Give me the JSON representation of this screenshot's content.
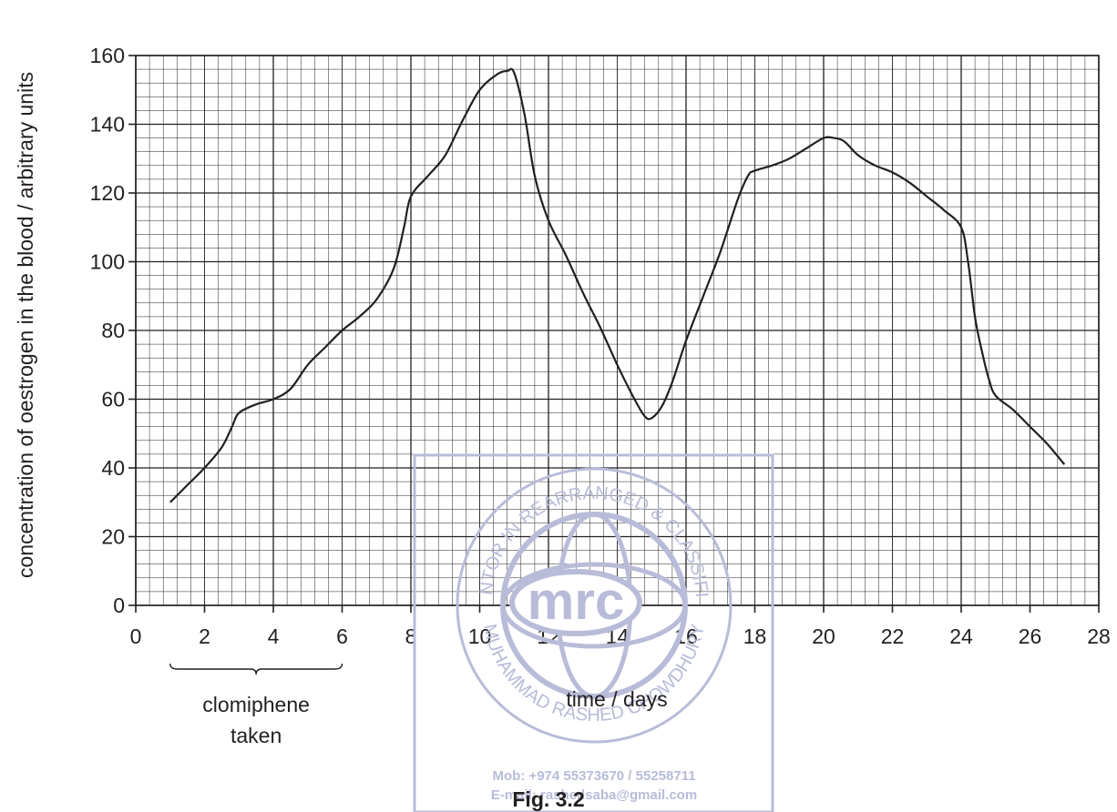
{
  "chart_data": {
    "type": "line",
    "title": "",
    "caption": "Fig. 3.2",
    "xlabel": "time / days",
    "ylabel": "concentration of oestrogen in the blood / arbitrary units",
    "xlim": [
      0,
      28
    ],
    "ylim": [
      0,
      160
    ],
    "x_ticks": [
      0,
      2,
      4,
      6,
      8,
      10,
      12,
      14,
      16,
      18,
      20,
      22,
      24,
      26,
      28
    ],
    "y_ticks": [
      0,
      20,
      40,
      60,
      80,
      100,
      120,
      140,
      160
    ],
    "grid": true,
    "annotation": {
      "text_line1": "clomiphene",
      "text_line2": "taken",
      "x_start": 1,
      "x_end": 6
    },
    "series": [
      {
        "x": [
          1,
          1.5,
          2,
          2.5,
          2.8,
          3,
          3.5,
          4,
          4.5,
          5,
          5.5,
          6,
          6.5,
          7,
          7.5,
          7.8,
          8,
          8.5,
          9,
          9.5,
          10,
          10.5,
          10.8,
          11,
          11.3,
          11.6,
          12,
          12.5,
          13,
          13.5,
          14,
          14.5,
          14.8,
          15,
          15.3,
          15.6,
          16,
          16.5,
          17,
          17.5,
          17.8,
          18,
          18.5,
          19,
          19.5,
          20,
          20.3,
          20.6,
          21,
          21.5,
          22,
          22.5,
          23,
          23.5,
          24,
          24.2,
          24.4,
          24.6,
          24.8,
          25,
          25.5,
          26,
          26.5,
          27
        ],
        "y": [
          30,
          35,
          40,
          46,
          52,
          56,
          58.5,
          60,
          63,
          70,
          75,
          80,
          84,
          89,
          98,
          110,
          119,
          125,
          131,
          141,
          150,
          154.5,
          155.5,
          155,
          143,
          125,
          112,
          102,
          91,
          81,
          70,
          60,
          55,
          54.5,
          58,
          65,
          77,
          90,
          103,
          118,
          125,
          126.5,
          128,
          130,
          133,
          136,
          136,
          135,
          131,
          128,
          126,
          123,
          119,
          115,
          110,
          100,
          84,
          74,
          66,
          61,
          57,
          52,
          47,
          41
        ]
      }
    ],
    "watermark": {
      "logo_text": "mrc",
      "ring_top": "MENTOR IN REARRANGED & CLASSIFIED",
      "ring_bottom": "MUHAMMAD RASHED CHOWDHURY",
      "contact_mob": "Mob: +974 55373670 / 55258711",
      "contact_email": "E-mail: rashedsaba@gmail.com",
      "color": "#b8bcd8"
    }
  }
}
